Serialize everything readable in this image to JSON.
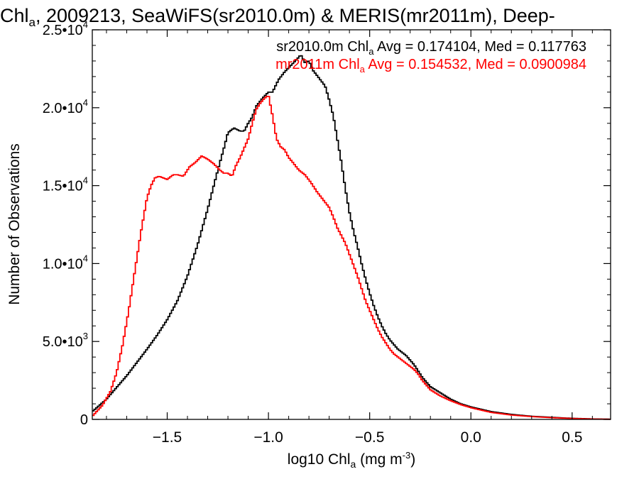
{
  "chart_data": {
    "type": "line",
    "title": {
      "pre": "Chl",
      "sub": "a",
      "post": ", 2009213, SeaWiFS(sr2010.0m) & MERIS(mr2011m), Deep-"
    },
    "xlabel": {
      "pre": "log10 Chl",
      "sub": "a",
      "units": " (mg m",
      "sup": "-3",
      "close": ")"
    },
    "ylabel": "Number of Observations",
    "xlim": [
      -1.87,
      0.69
    ],
    "ylim": [
      0,
      25000
    ],
    "x_ticks": [
      {
        "value": -1.5,
        "label": "−1.5"
      },
      {
        "value": -1.0,
        "label": "−1.0"
      },
      {
        "value": -0.5,
        "label": "−0.5"
      },
      {
        "value": 0.0,
        "label": "0.0"
      },
      {
        "value": 0.5,
        "label": "0.5"
      }
    ],
    "y_ticks": [
      {
        "value": 0,
        "mant": "0",
        "exp": ""
      },
      {
        "value": 5000,
        "mant": "5.0•10",
        "exp": "3"
      },
      {
        "value": 10000,
        "mant": "1.0•10",
        "exp": "4"
      },
      {
        "value": 15000,
        "mant": "1.5•10",
        "exp": "4"
      },
      {
        "value": 20000,
        "mant": "2.0•10",
        "exp": "4"
      },
      {
        "value": 25000,
        "mant": "2.5•10",
        "exp": "4"
      }
    ],
    "grid": false,
    "legend_position": "top-right",
    "series": [
      {
        "name": "sr2010.0m",
        "color": "#000000",
        "stat_label": {
          "pre": "sr2010.0m Chl",
          "sub": "a",
          "post": " Avg = 0.174104, Med = 0.117763"
        },
        "points": [
          [
            -1.87,
            500
          ],
          [
            -1.8,
            1300
          ],
          [
            -1.7,
            2800
          ],
          [
            -1.6,
            4500
          ],
          [
            -1.55,
            5400
          ],
          [
            -1.5,
            6400
          ],
          [
            -1.45,
            7600
          ],
          [
            -1.4,
            9200
          ],
          [
            -1.35,
            11200
          ],
          [
            -1.3,
            13500
          ],
          [
            -1.27,
            15000
          ],
          [
            -1.25,
            16000
          ],
          [
            -1.22,
            17400
          ],
          [
            -1.2,
            18400
          ],
          [
            -1.17,
            18700
          ],
          [
            -1.14,
            18500
          ],
          [
            -1.12,
            18500
          ],
          [
            -1.1,
            19000
          ],
          [
            -1.08,
            19400
          ],
          [
            -1.06,
            20100
          ],
          [
            -1.03,
            20600
          ],
          [
            -1.0,
            21000
          ],
          [
            -0.98,
            21000
          ],
          [
            -0.95,
            21800
          ],
          [
            -0.92,
            22300
          ],
          [
            -0.89,
            22700
          ],
          [
            -0.86,
            23100
          ],
          [
            -0.84,
            23400
          ],
          [
            -0.82,
            22900
          ],
          [
            -0.8,
            23000
          ],
          [
            -0.78,
            22400
          ],
          [
            -0.75,
            21900
          ],
          [
            -0.72,
            21400
          ],
          [
            -0.7,
            20500
          ],
          [
            -0.68,
            19500
          ],
          [
            -0.66,
            18000
          ],
          [
            -0.64,
            16500
          ],
          [
            -0.62,
            14800
          ],
          [
            -0.6,
            13300
          ],
          [
            -0.58,
            12100
          ],
          [
            -0.56,
            11100
          ],
          [
            -0.54,
            10000
          ],
          [
            -0.52,
            9000
          ],
          [
            -0.5,
            8100
          ],
          [
            -0.48,
            7300
          ],
          [
            -0.46,
            6600
          ],
          [
            -0.44,
            6000
          ],
          [
            -0.42,
            5500
          ],
          [
            -0.4,
            5100
          ],
          [
            -0.38,
            4800
          ],
          [
            -0.36,
            4500
          ],
          [
            -0.34,
            4300
          ],
          [
            -0.32,
            4100
          ],
          [
            -0.3,
            3800
          ],
          [
            -0.28,
            3500
          ],
          [
            -0.26,
            3100
          ],
          [
            -0.24,
            2700
          ],
          [
            -0.22,
            2400
          ],
          [
            -0.2,
            2100
          ],
          [
            -0.15,
            1700
          ],
          [
            -0.1,
            1300
          ],
          [
            -0.05,
            1000
          ],
          [
            0.0,
            800
          ],
          [
            0.1,
            500
          ],
          [
            0.2,
            320
          ],
          [
            0.3,
            200
          ],
          [
            0.4,
            130
          ],
          [
            0.5,
            70
          ],
          [
            0.6,
            30
          ],
          [
            0.69,
            10
          ]
        ]
      },
      {
        "name": "mr2011m",
        "color": "#ff0000",
        "stat_label": {
          "pre": "mr2011m Chl",
          "sub": "a",
          "post": " Avg = 0.154532, Med = 0.0900984"
        },
        "points": [
          [
            -1.87,
            200
          ],
          [
            -1.82,
            900
          ],
          [
            -1.78,
            1800
          ],
          [
            -1.75,
            3000
          ],
          [
            -1.72,
            4800
          ],
          [
            -1.69,
            7000
          ],
          [
            -1.66,
            9500
          ],
          [
            -1.63,
            12000
          ],
          [
            -1.6,
            14200
          ],
          [
            -1.58,
            15000
          ],
          [
            -1.56,
            15500
          ],
          [
            -1.54,
            15600
          ],
          [
            -1.52,
            15500
          ],
          [
            -1.5,
            15400
          ],
          [
            -1.47,
            15700
          ],
          [
            -1.45,
            15700
          ],
          [
            -1.42,
            15600
          ],
          [
            -1.39,
            16200
          ],
          [
            -1.36,
            16500
          ],
          [
            -1.33,
            16900
          ],
          [
            -1.3,
            16700
          ],
          [
            -1.27,
            16400
          ],
          [
            -1.24,
            16000
          ],
          [
            -1.22,
            15800
          ],
          [
            -1.2,
            15800
          ],
          [
            -1.18,
            15600
          ],
          [
            -1.16,
            16300
          ],
          [
            -1.14,
            16800
          ],
          [
            -1.12,
            17400
          ],
          [
            -1.1,
            18000
          ],
          [
            -1.08,
            19000
          ],
          [
            -1.06,
            19900
          ],
          [
            -1.04,
            20300
          ],
          [
            -1.02,
            20600
          ],
          [
            -1.0,
            20800
          ],
          [
            -0.98,
            19500
          ],
          [
            -0.96,
            18000
          ],
          [
            -0.94,
            17500
          ],
          [
            -0.92,
            17300
          ],
          [
            -0.9,
            16800
          ],
          [
            -0.88,
            16500
          ],
          [
            -0.85,
            16000
          ],
          [
            -0.82,
            15700
          ],
          [
            -0.79,
            15200
          ],
          [
            -0.76,
            14600
          ],
          [
            -0.73,
            14100
          ],
          [
            -0.7,
            13600
          ],
          [
            -0.68,
            13000
          ],
          [
            -0.66,
            12300
          ],
          [
            -0.64,
            11800
          ],
          [
            -0.62,
            11300
          ],
          [
            -0.6,
            10600
          ],
          [
            -0.58,
            9900
          ],
          [
            -0.56,
            9200
          ],
          [
            -0.54,
            8400
          ],
          [
            -0.52,
            7600
          ],
          [
            -0.5,
            7000
          ],
          [
            -0.48,
            6400
          ],
          [
            -0.46,
            5800
          ],
          [
            -0.44,
            5300
          ],
          [
            -0.42,
            4900
          ],
          [
            -0.4,
            4500
          ],
          [
            -0.38,
            4200
          ],
          [
            -0.36,
            4000
          ],
          [
            -0.34,
            3800
          ],
          [
            -0.32,
            3600
          ],
          [
            -0.3,
            3400
          ],
          [
            -0.28,
            3200
          ],
          [
            -0.26,
            2900
          ],
          [
            -0.24,
            2500
          ],
          [
            -0.22,
            2200
          ],
          [
            -0.2,
            1900
          ],
          [
            -0.15,
            1500
          ],
          [
            -0.1,
            1200
          ],
          [
            -0.05,
            950
          ],
          [
            0.0,
            750
          ],
          [
            0.1,
            450
          ],
          [
            0.2,
            280
          ],
          [
            0.3,
            180
          ],
          [
            0.4,
            110
          ],
          [
            0.5,
            60
          ],
          [
            0.6,
            25
          ],
          [
            0.69,
            10
          ]
        ]
      }
    ]
  }
}
